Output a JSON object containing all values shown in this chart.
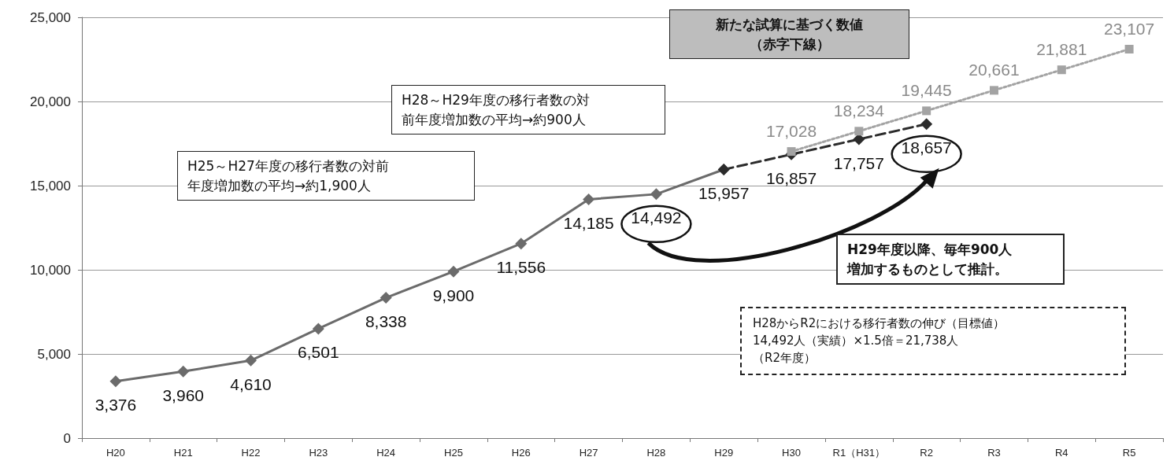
{
  "chart_data": {
    "type": "line",
    "categories": [
      "H20",
      "H21",
      "H22",
      "H23",
      "H24",
      "H25",
      "H26",
      "H27",
      "H28",
      "H29",
      "H30",
      "R1（H31）",
      "R2",
      "R3",
      "R4",
      "R5"
    ],
    "series": [
      {
        "color": "#6b6b6b",
        "marker": "diamond",
        "line_style": "solid",
        "values": [
          3376,
          3960,
          4610,
          6501,
          8338,
          9900,
          11556,
          14185,
          14492,
          15957,
          null,
          null,
          null,
          null,
          null,
          null
        ],
        "value_labels": [
          "3,376",
          "3,960",
          "4,610",
          "6,501",
          "8,338",
          "9,900",
          "11,556",
          "14,185",
          "14,492",
          "15,957",
          null,
          null,
          null,
          null,
          null,
          null
        ]
      },
      {
        "color": "#2b2b2b",
        "marker": "diamond",
        "line_style": "dashed",
        "values": [
          null,
          null,
          null,
          null,
          null,
          null,
          null,
          null,
          null,
          15957,
          16857,
          17757,
          18657,
          null,
          null,
          null
        ],
        "value_labels": [
          null,
          null,
          null,
          null,
          null,
          null,
          null,
          null,
          null,
          null,
          "16,857",
          "17,757",
          "18,657",
          null,
          null,
          null
        ]
      },
      {
        "color": "#a3a3a3",
        "marker": "square",
        "line_style": "dotted",
        "values": [
          null,
          null,
          null,
          null,
          null,
          null,
          null,
          null,
          null,
          null,
          17028,
          18234,
          19445,
          20661,
          21881,
          23107
        ],
        "value_labels": [
          null,
          null,
          null,
          null,
          null,
          null,
          null,
          null,
          null,
          null,
          "17,028",
          "18,234",
          "19,445",
          "20,661",
          "21,881",
          "23,107"
        ]
      }
    ],
    "ylim": [
      0,
      25000
    ],
    "yticks": [
      0,
      {
        "value": 5000,
        "label": "5,000"
      },
      {
        "value": 10000,
        "label": "10,000"
      },
      {
        "value": 15000,
        "label": "15,000"
      },
      {
        "value": 20000,
        "label": "20,000"
      },
      {
        "value": 25000,
        "label": "25,000"
      }
    ],
    "grid": "y",
    "annotations": [
      "新たな試算に基づく数値（赤字下線）",
      "H28～H29年度の移行者数の対前年度増加数の平均→約900人",
      "H25～H27年度の移行者数の対前年度増加数の平均→約1,900人",
      "H29年度以降、毎年900人増加するものとして推計。",
      "H28からR2における移行者数の伸び（目標値） 14,492人（実績）×1.5倍＝21,738人（R2年度）"
    ]
  }
}
